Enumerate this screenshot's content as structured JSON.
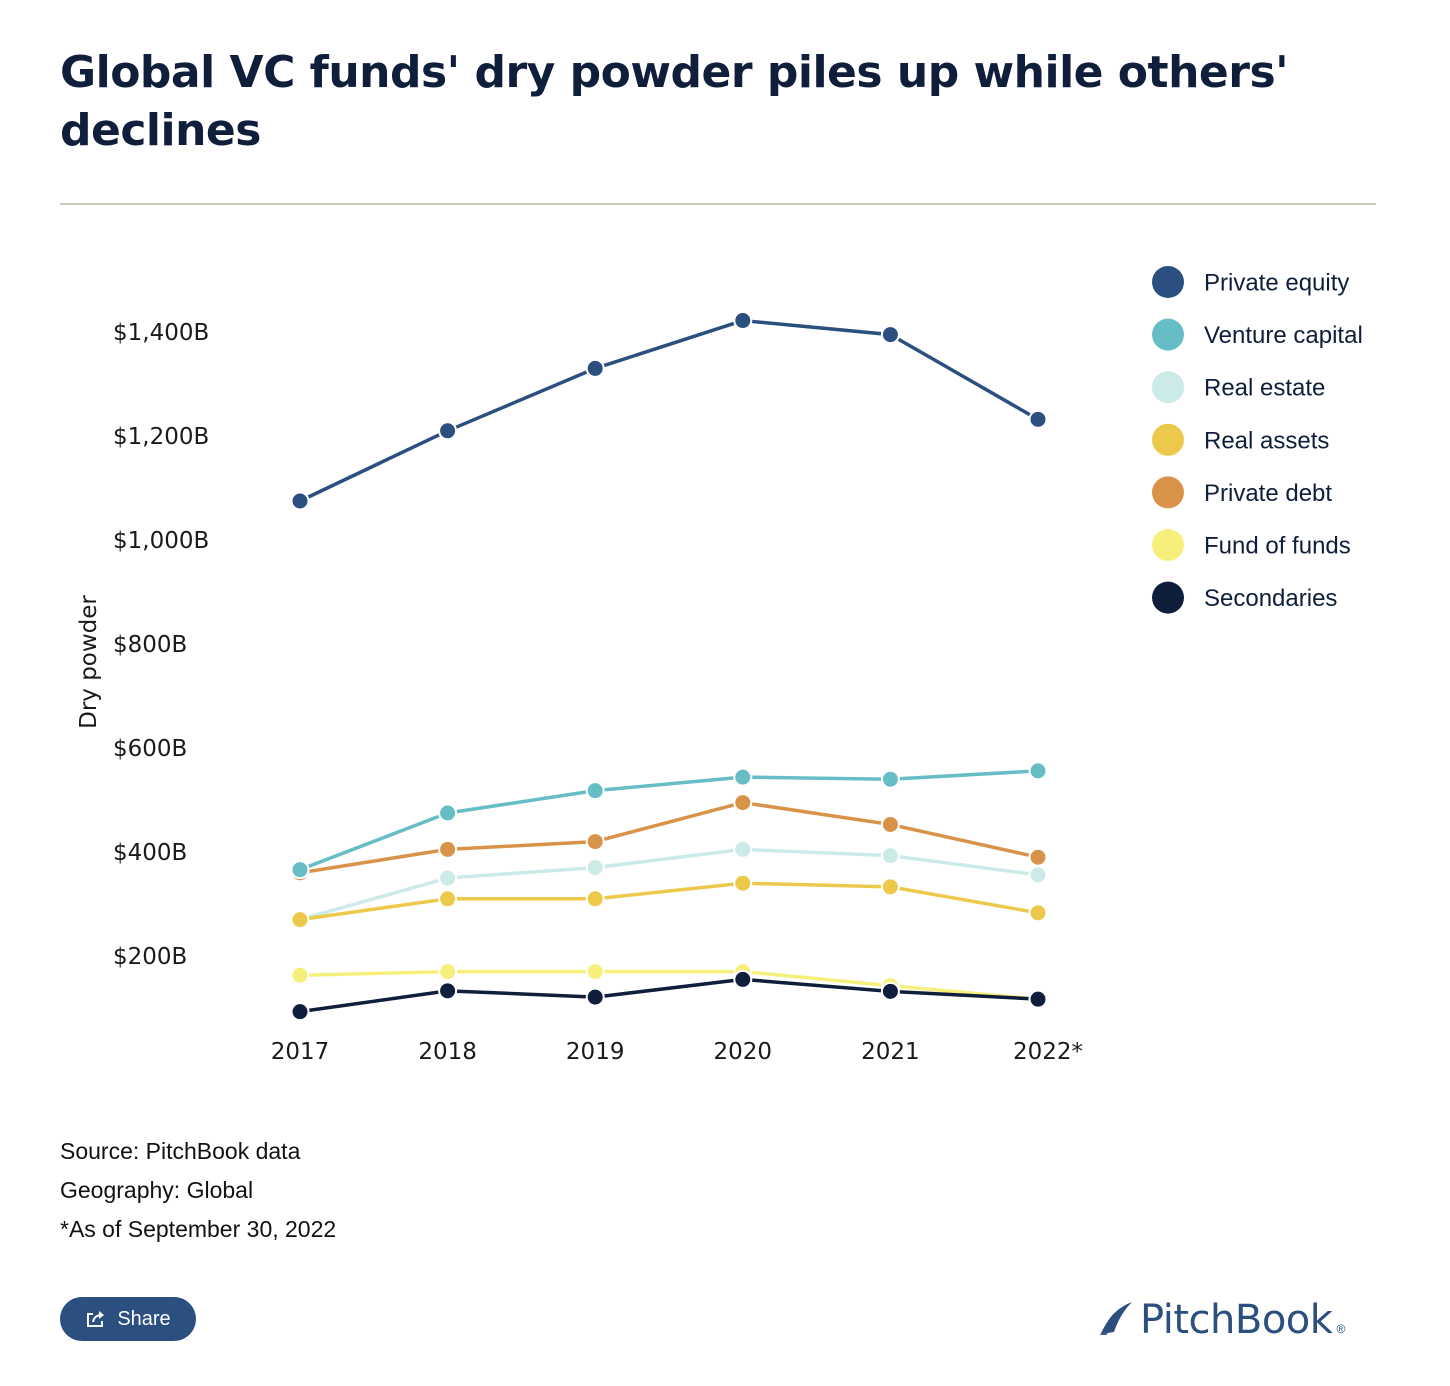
{
  "title": "Global VC funds' dry powder piles up while others' declines",
  "notes": {
    "source": "Source: PitchBook data",
    "geography": "Geography: Global",
    "as_of": "*As of September 30, 2022"
  },
  "share": {
    "label": "Share",
    "icon": "share-icon"
  },
  "logo": {
    "text": "PitchBook",
    "registered": "®",
    "color": "#2b4f7e"
  },
  "chart_data": {
    "type": "line",
    "title": "Global VC funds' dry powder piles up while others' declines",
    "xlabel": "",
    "ylabel": "Dry powder",
    "categories": [
      "2017",
      "2018",
      "2019",
      "2020",
      "2021",
      "2022*"
    ],
    "y_ticks": [
      200,
      400,
      600,
      800,
      1000,
      1200,
      1400
    ],
    "y_tick_labels": [
      "$200B",
      "$400B",
      "$600B",
      "$800B",
      "$1,000B",
      "$1,200B",
      "$1,400B"
    ],
    "ylim": [
      50,
      1450
    ],
    "grid": false,
    "legend_position": "top-right",
    "series": [
      {
        "name": "Fund of funds",
        "color": "#f7ef7b",
        "values": [
          163,
          170,
          170,
          170,
          143,
          117
        ]
      },
      {
        "name": "Secondaries",
        "color": "#0f1e3a",
        "values": [
          93,
          133,
          121,
          155,
          132,
          117
        ]
      },
      {
        "name": "Real estate",
        "color": "#cbeae8",
        "values": [
          270,
          350,
          370,
          405,
          393,
          356
        ]
      },
      {
        "name": "Real assets",
        "color": "#ecc94b",
        "values": [
          270,
          310,
          310,
          340,
          333,
          283
        ]
      },
      {
        "name": "Private debt",
        "color": "#d99349",
        "values": [
          360,
          405,
          420,
          495,
          453,
          390
        ]
      },
      {
        "name": "Venture capital",
        "color": "#66bdc6",
        "values": [
          366,
          475,
          518,
          544,
          540,
          556
        ]
      },
      {
        "name": "Private equity",
        "color": "#2b4f7e",
        "values": [
          1075,
          1210,
          1330,
          1422,
          1395,
          1232
        ]
      }
    ],
    "legend_order": [
      "Private equity",
      "Venture capital",
      "Real estate",
      "Real assets",
      "Private debt",
      "Fund of funds",
      "Secondaries"
    ]
  }
}
